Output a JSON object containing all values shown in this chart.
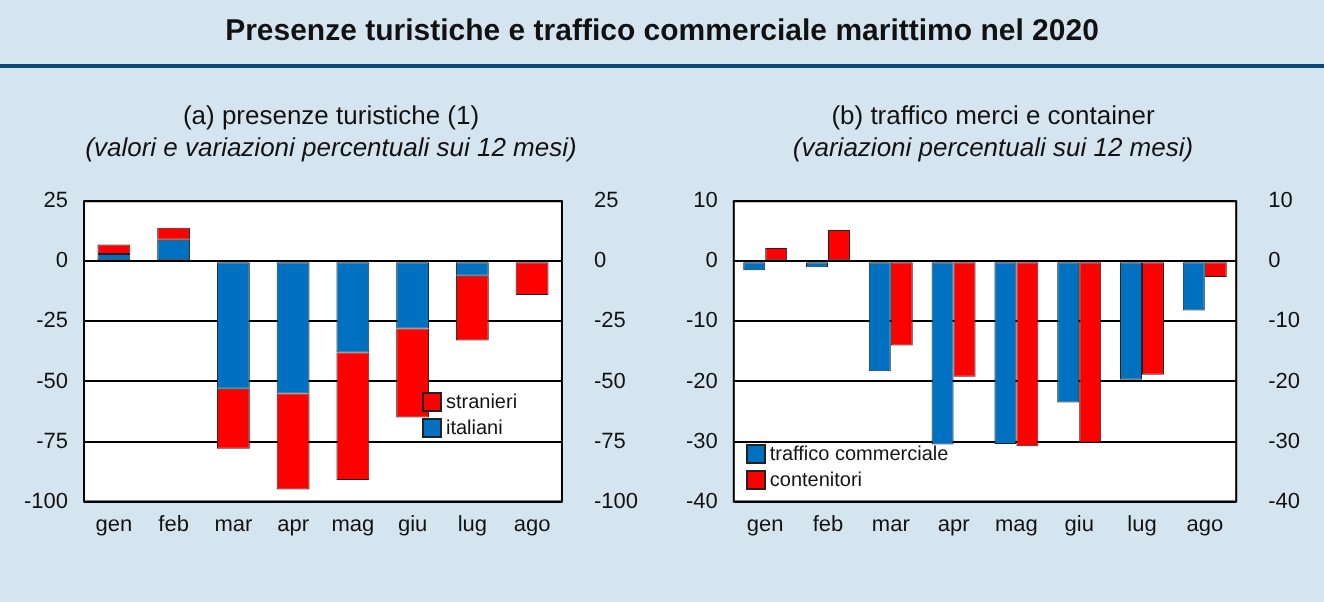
{
  "chart_data": [
    {
      "type": "bar",
      "title": "(a) presenze turistiche (1)",
      "subtitle": "(valori e variazioni percentuali sui 12 mesi)",
      "annotations": [
        "Presenze turistiche e traffico commerciale marittimo nel 2020"
      ],
      "stacked": true,
      "categories": [
        "gen",
        "feb",
        "mar",
        "apr",
        "mag",
        "giu",
        "lug",
        "ago"
      ],
      "series": [
        {
          "name": "italiani",
          "color": "#0070c0",
          "values": [
            3,
            9,
            -53,
            -55,
            -38,
            -28,
            -6,
            null
          ]
        },
        {
          "name": "stranieri",
          "color": "#ff0000",
          "values": [
            4,
            5,
            -25,
            -40,
            -53,
            -37,
            -27,
            -14
          ]
        }
      ],
      "ylim": [
        -100,
        25
      ],
      "yticks": [
        -100,
        -75,
        -50,
        -25,
        0,
        25
      ],
      "y2lim": [
        -100,
        25
      ],
      "y2ticks": [
        -100,
        -75,
        -50,
        -25,
        0,
        25
      ],
      "grid": "y",
      "legend": "bottom right"
    },
    {
      "type": "bar",
      "title": "(b) traffico merci e container",
      "subtitle": "(variazioni percentuali sui 12 mesi)",
      "categories": [
        "gen",
        "feb",
        "mar",
        "apr",
        "mag",
        "giu",
        "lug",
        "ago"
      ],
      "series": [
        {
          "name": "traffico commerciale",
          "color": "#0070c0",
          "values": [
            -1.5,
            -1,
            -18.3,
            -30.5,
            -30.4,
            -23.5,
            -19.7,
            -8.2
          ]
        },
        {
          "name": "contenitori",
          "color": "#ff0000",
          "values": [
            2.2,
            5.2,
            -14,
            -19.2,
            -30.8,
            -30.2,
            -18.9,
            -2.6
          ]
        }
      ],
      "ylim": [
        -40,
        10
      ],
      "yticks": [
        -40,
        -30,
        -20,
        -10,
        0,
        10
      ],
      "y2lim": [
        -40,
        10
      ],
      "y2ticks": [
        -40,
        -30,
        -20,
        -10,
        0,
        10
      ],
      "grid": "y",
      "legend": "bottom left"
    }
  ]
}
